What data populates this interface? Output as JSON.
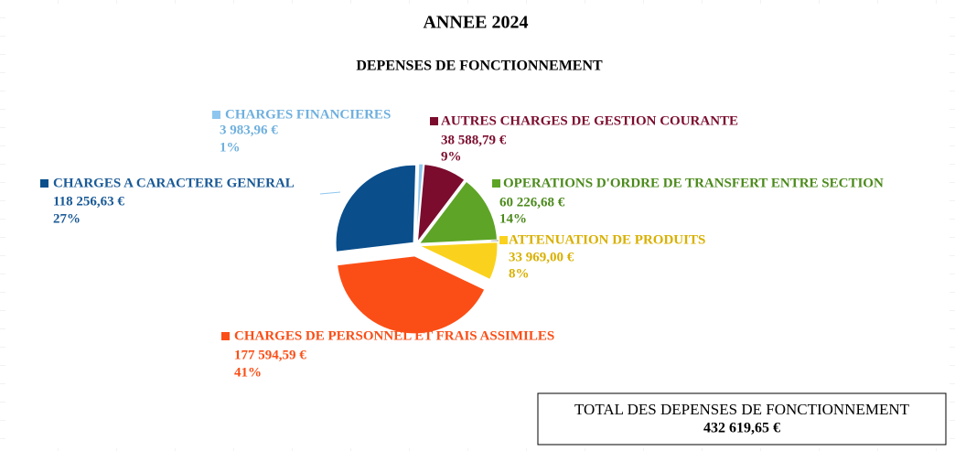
{
  "chart_data": {
    "type": "pie",
    "title": "ANNEE 2024",
    "subtitle": "DEPENSES DE FONCTIONNEMENT",
    "categories": [
      "CHARGES FINANCIERES",
      "AUTRES CHARGES DE GESTION COURANTE",
      "OPERATIONS D'ORDRE DE TRANSFERT ENTRE SECTION",
      "ATTENUATION DE PRODUITS",
      "CHARGES DE PERSONNEL ET FRAIS ASSIMILES",
      "CHARGES A CARACTERE GENERAL"
    ],
    "values": [
      3983.96,
      38588.79,
      60226.68,
      33969.0,
      177594.59,
      118256.63
    ],
    "value_labels": [
      "3 983,96 €",
      "38 588,79 €",
      "60 226,68 €",
      "33 969,00 €",
      "177 594,59 €",
      "118 256,63 €"
    ],
    "percent_labels": [
      "1%",
      "9%",
      "14%",
      "8%",
      "41%",
      "27%"
    ],
    "colors": [
      "#8dc6ee",
      "#7b0c2e",
      "#5ea426",
      "#fad21d",
      "#fb4e16",
      "#0a4e8c"
    ],
    "label_colors": [
      "#6fb0de",
      "#7b0c2e",
      "#4c8a1c",
      "#d9b000",
      "#fb4e16",
      "#1a5a96"
    ],
    "total_label": "TOTAL DES DEPENSES DE FONCTIONNEMENT",
    "total_text": "432 619,65 €"
  }
}
